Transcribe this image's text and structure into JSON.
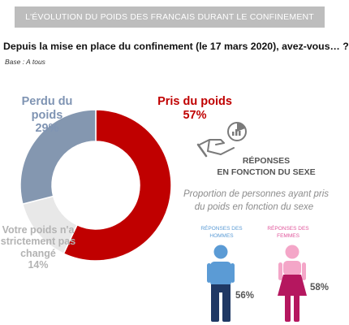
{
  "header": {
    "banner": "L'ÉVOLUTION DU POIDS DES FRANCAIS DURANT LE CONFINEMENT",
    "question": "Depuis la mise en place du confinement (le 17 mars 2020), avez-vous… ?",
    "base": "Base : A tous"
  },
  "chart_data": {
    "type": "pie",
    "categories": [
      "Pris du poids",
      "Votre poids n'a strictement pas changé",
      "Perdu du poids"
    ],
    "values": [
      57,
      14,
      29
    ],
    "colors": [
      "#c00000",
      "#e8e8e8",
      "#8497b0"
    ],
    "value_labels": [
      "57%",
      "14%",
      "29%"
    ],
    "category_lines": [
      [
        "Pris du poids"
      ],
      [
        "Votre poids n'a",
        "strictement pas",
        "changé"
      ],
      [
        "Perdu du poids"
      ]
    ]
  },
  "side_panel": {
    "title_line1": "RÉPONSES",
    "title_line2": "EN FONCTION DU SEXE",
    "proportion_line1": "Proportion de personnes ayant pris",
    "proportion_line2": "du poids en fonction du sexe",
    "men": {
      "label_line1": "RÉPONSES DES",
      "label_line2": "HOMMES",
      "value_label": "56%",
      "value": 56,
      "icon": "man-icon",
      "color_top": "#5b9bd5",
      "color_bottom": "#1f3864"
    },
    "women": {
      "label_line1": "RÉPONSES DES",
      "label_line2": "FEMMES",
      "value_label": "58%",
      "value": 58,
      "icon": "woman-icon",
      "color_top": "#f4a6c8",
      "color_bottom": "#b5175f"
    }
  }
}
